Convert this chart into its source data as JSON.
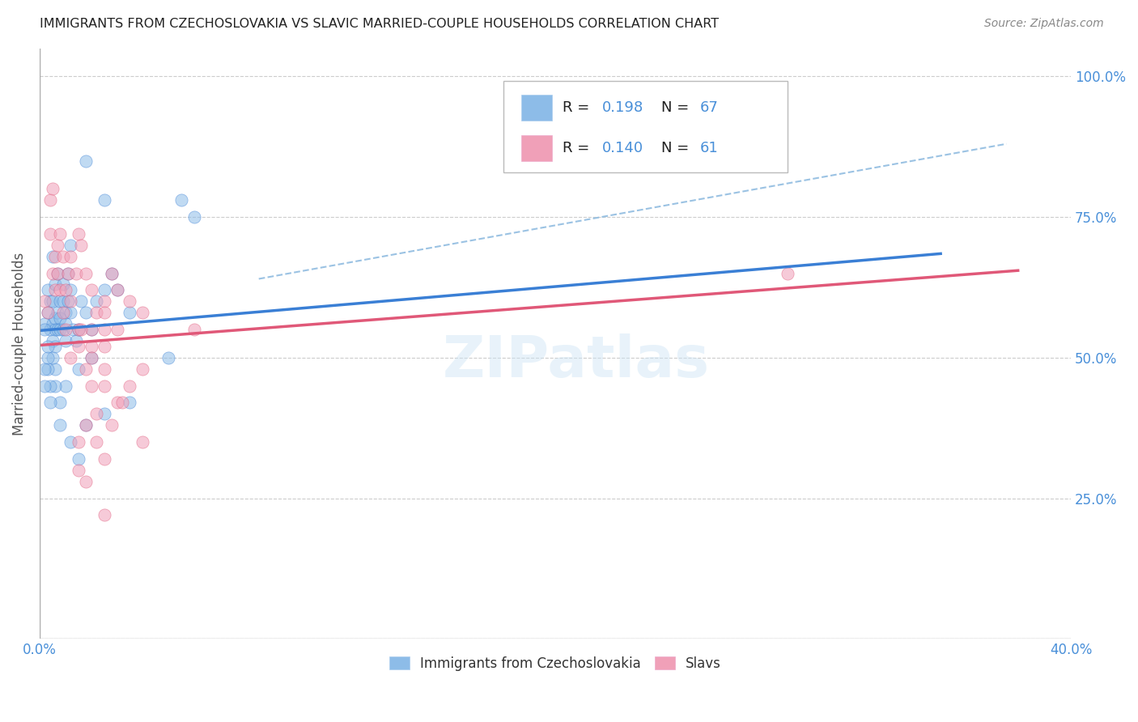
{
  "title": "IMMIGRANTS FROM CZECHOSLOVAKIA VS SLAVIC MARRIED-COUPLE HOUSEHOLDS CORRELATION CHART",
  "source": "Source: ZipAtlas.com",
  "ylabel": "Married-couple Households",
  "yticks": [
    0.0,
    0.25,
    0.5,
    0.75,
    1.0
  ],
  "ytick_labels": [
    "",
    "25.0%",
    "50.0%",
    "75.0%",
    "100.0%"
  ],
  "xticks": [
    0.0,
    0.08,
    0.16,
    0.24,
    0.32,
    0.4
  ],
  "xtick_labels_show": [
    "0.0%",
    "",
    "",
    "",
    "",
    "40.0%"
  ],
  "xlim": [
    0.0,
    0.4
  ],
  "ylim": [
    0.0,
    1.05
  ],
  "legend_label1": "Immigrants from Czechoslovakia",
  "legend_label2": "Slavs",
  "blue_color": "#8dbce8",
  "pink_color": "#f0a0b8",
  "blue_line_color": "#3a7fd5",
  "pink_line_color": "#e05878",
  "dashed_line_color": "#90bce0",
  "title_color": "#222222",
  "source_color": "#888888",
  "axis_label_color": "#4a90d9",
  "background_color": "#ffffff",
  "watermark_color": "#cce4f5",
  "blue_scatter_x": [
    0.002,
    0.003,
    0.003,
    0.004,
    0.004,
    0.005,
    0.005,
    0.005,
    0.006,
    0.006,
    0.006,
    0.006,
    0.007,
    0.007,
    0.007,
    0.008,
    0.008,
    0.008,
    0.009,
    0.009,
    0.009,
    0.01,
    0.01,
    0.01,
    0.011,
    0.011,
    0.012,
    0.012,
    0.013,
    0.014,
    0.015,
    0.016,
    0.018,
    0.02,
    0.022,
    0.025,
    0.028,
    0.03,
    0.035,
    0.02,
    0.015,
    0.01,
    0.008,
    0.006,
    0.006,
    0.005,
    0.004,
    0.004,
    0.003,
    0.003,
    0.002,
    0.002,
    0.002,
    0.003,
    0.005,
    0.012,
    0.025,
    0.018,
    0.055,
    0.06,
    0.008,
    0.012,
    0.015,
    0.018,
    0.025,
    0.035,
    0.05
  ],
  "blue_scatter_y": [
    0.56,
    0.58,
    0.62,
    0.6,
    0.55,
    0.56,
    0.53,
    0.6,
    0.57,
    0.55,
    0.52,
    0.63,
    0.58,
    0.55,
    0.65,
    0.6,
    0.57,
    0.55,
    0.63,
    0.6,
    0.55,
    0.56,
    0.58,
    0.53,
    0.6,
    0.65,
    0.58,
    0.62,
    0.55,
    0.53,
    0.55,
    0.6,
    0.58,
    0.55,
    0.6,
    0.62,
    0.65,
    0.62,
    0.58,
    0.5,
    0.48,
    0.45,
    0.42,
    0.48,
    0.45,
    0.5,
    0.42,
    0.45,
    0.48,
    0.5,
    0.45,
    0.48,
    0.55,
    0.52,
    0.68,
    0.7,
    0.78,
    0.85,
    0.78,
    0.75,
    0.38,
    0.35,
    0.32,
    0.38,
    0.4,
    0.42,
    0.5
  ],
  "pink_scatter_x": [
    0.002,
    0.003,
    0.004,
    0.004,
    0.005,
    0.005,
    0.006,
    0.006,
    0.007,
    0.007,
    0.008,
    0.008,
    0.009,
    0.009,
    0.01,
    0.01,
    0.011,
    0.012,
    0.012,
    0.014,
    0.015,
    0.016,
    0.018,
    0.02,
    0.022,
    0.025,
    0.028,
    0.03,
    0.035,
    0.04,
    0.015,
    0.02,
    0.025,
    0.03,
    0.02,
    0.025,
    0.012,
    0.015,
    0.018,
    0.02,
    0.025,
    0.03,
    0.035,
    0.04,
    0.018,
    0.022,
    0.015,
    0.028,
    0.032,
    0.025,
    0.022,
    0.018,
    0.015,
    0.04,
    0.02,
    0.025,
    0.016,
    0.025,
    0.025,
    0.06,
    0.29
  ],
  "pink_scatter_y": [
    0.6,
    0.58,
    0.72,
    0.78,
    0.8,
    0.65,
    0.68,
    0.62,
    0.7,
    0.65,
    0.72,
    0.62,
    0.68,
    0.58,
    0.62,
    0.55,
    0.65,
    0.68,
    0.6,
    0.65,
    0.72,
    0.7,
    0.65,
    0.62,
    0.58,
    0.6,
    0.65,
    0.62,
    0.6,
    0.58,
    0.55,
    0.52,
    0.58,
    0.55,
    0.45,
    0.48,
    0.5,
    0.52,
    0.48,
    0.5,
    0.45,
    0.42,
    0.45,
    0.48,
    0.38,
    0.4,
    0.35,
    0.38,
    0.42,
    0.32,
    0.35,
    0.28,
    0.3,
    0.35,
    0.55,
    0.52,
    0.55,
    0.55,
    0.22,
    0.55,
    0.65
  ],
  "blue_line_x": [
    0.0,
    0.35
  ],
  "blue_line_y": [
    0.548,
    0.685
  ],
  "pink_line_x": [
    0.0,
    0.38
  ],
  "pink_line_y": [
    0.522,
    0.655
  ],
  "dashed_line_x": [
    0.085,
    0.375
  ],
  "dashed_line_y": [
    0.64,
    0.88
  ]
}
